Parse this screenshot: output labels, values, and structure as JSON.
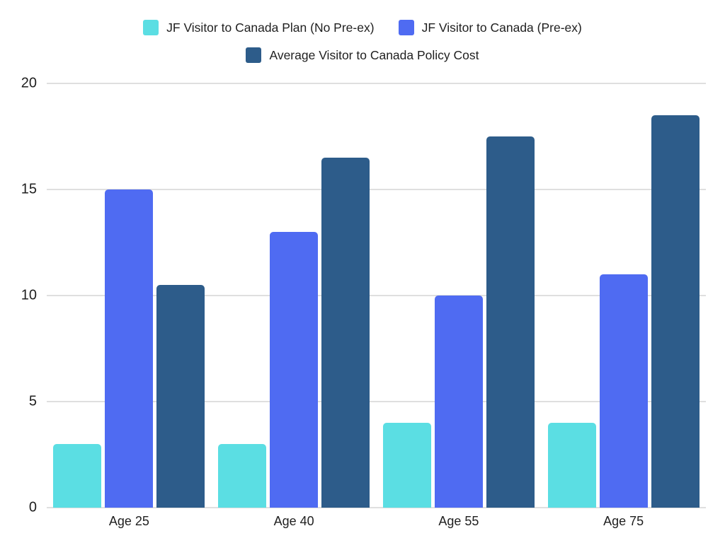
{
  "chart_data": {
    "type": "bar",
    "title": "",
    "xlabel": "",
    "ylabel": "",
    "categories": [
      "Age 25",
      "Age 40",
      "Age 55",
      "Age 75"
    ],
    "series": [
      {
        "name": "JF Visitor to Canada Plan (No Pre-ex)",
        "color": "#5BDEE3",
        "values": [
          3,
          3,
          4,
          4
        ]
      },
      {
        "name": "JF Visitor to Canada (Pre-ex)",
        "color": "#4F6BF2",
        "values": [
          15,
          13,
          10,
          11
        ]
      },
      {
        "name": "Average Visitor to Canada Policy Cost",
        "color": "#2D5C8A",
        "values": [
          10.5,
          16.5,
          17.5,
          18.5
        ]
      }
    ],
    "ylim": [
      0,
      20
    ],
    "yticks": [
      0,
      5,
      10,
      15,
      20
    ],
    "grid": true,
    "legend_position": "top",
    "legend_rows": [
      [
        0,
        1
      ],
      [
        2
      ]
    ]
  },
  "colors": {
    "background": "#FFFFFF",
    "gridline": "#DFDFDF",
    "text": "#1F1F1F"
  }
}
